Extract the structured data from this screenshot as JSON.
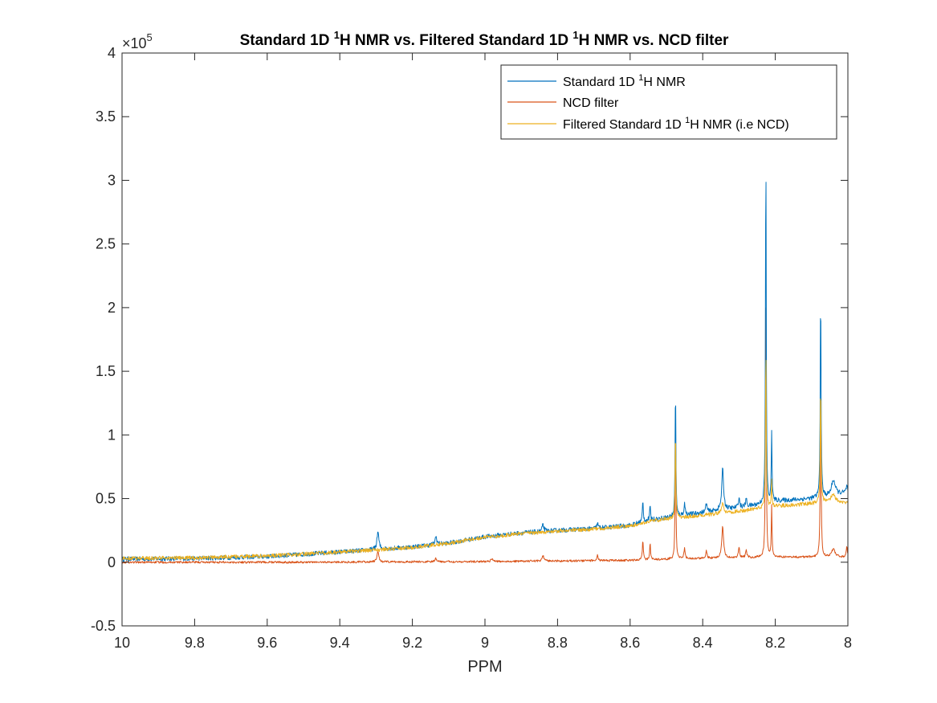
{
  "chart_data": {
    "type": "line",
    "title_parts": {
      "a": "Standard 1D ",
      "sup1": "1",
      "b": "H NMR vs. Filtered Standard 1D ",
      "sup2": "1",
      "c": "H NMR vs. NCD filter"
    },
    "xlabel": "PPM",
    "ylabel": "",
    "x_reversed": true,
    "xlim": [
      8,
      10
    ],
    "ylim": [
      -50000,
      400000
    ],
    "y_exponent_label": {
      "base": "×10",
      "exp": "5"
    },
    "xticks": [
      10,
      9.8,
      9.6,
      9.4,
      9.2,
      9,
      8.8,
      8.6,
      8.4,
      8.2,
      8
    ],
    "xtick_labels": [
      "10",
      "9.8",
      "9.6",
      "9.4",
      "9.2",
      "9",
      "8.8",
      "8.6",
      "8.4",
      "8.2",
      "8"
    ],
    "yticks": [
      -50000,
      0,
      50000,
      100000,
      150000,
      200000,
      250000,
      300000,
      350000,
      400000
    ],
    "ytick_labels": [
      "-0.5",
      "0",
      "0.5",
      "1",
      "1.5",
      "2",
      "2.5",
      "3",
      "3.5",
      "4"
    ],
    "grid": false,
    "legend_position": "top-right",
    "series": [
      {
        "name_parts": {
          "a": "Standard 1D ",
          "sup": "1",
          "b": "H NMR"
        },
        "color": "#0072BD",
        "baseline": [
          [
            10,
            2500
          ],
          [
            9.8,
            3000
          ],
          [
            9.6,
            4500
          ],
          [
            9.4,
            8000
          ],
          [
            9.2,
            12000
          ],
          [
            9.1,
            15000
          ],
          [
            9.0,
            20000
          ],
          [
            8.9,
            23000
          ],
          [
            8.8,
            25000
          ],
          [
            8.7,
            26500
          ],
          [
            8.6,
            29000
          ],
          [
            8.55,
            33000
          ],
          [
            8.5,
            35000
          ],
          [
            8.45,
            37000
          ],
          [
            8.4,
            39000
          ],
          [
            8.35,
            41000
          ],
          [
            8.3,
            43000
          ],
          [
            8.25,
            45000
          ],
          [
            8.2,
            48000
          ],
          [
            8.15,
            49000
          ],
          [
            8.1,
            50000
          ],
          [
            8.05,
            52000
          ],
          [
            8.0,
            55000
          ]
        ],
        "peaks": [
          [
            9.295,
            14000,
            0.003
          ],
          [
            9.135,
            6000,
            0.003
          ],
          [
            8.84,
            5000,
            0.003
          ],
          [
            8.69,
            4000,
            0.002
          ],
          [
            8.565,
            16000,
            0.0015
          ],
          [
            8.545,
            10000,
            0.0015
          ],
          [
            8.475,
            105000,
            0.0012
          ],
          [
            8.45,
            9000,
            0.002
          ],
          [
            8.39,
            7000,
            0.002
          ],
          [
            8.345,
            32000,
            0.003
          ],
          [
            8.3,
            8000,
            0.002
          ],
          [
            8.28,
            6000,
            0.002
          ],
          [
            8.226,
            285000,
            0.0012
          ],
          [
            8.21,
            55000,
            0.0012
          ],
          [
            8.075,
            165000,
            0.0013
          ],
          [
            8.04,
            12000,
            0.006
          ],
          [
            8.003,
            5000,
            0.002
          ]
        ],
        "noise": 1800
      },
      {
        "name_parts": {
          "a": "NCD filter",
          "sup": "",
          "b": ""
        },
        "color": "#D95319",
        "baseline": [
          [
            10,
            0
          ],
          [
            9.5,
            0
          ],
          [
            9.0,
            500
          ],
          [
            8.8,
            1000
          ],
          [
            8.6,
            1500
          ],
          [
            8.4,
            3000
          ],
          [
            8.2,
            4000
          ],
          [
            8.0,
            4000
          ]
        ],
        "peaks": [
          [
            9.295,
            8000,
            0.003
          ],
          [
            9.135,
            2500,
            0.003
          ],
          [
            8.98,
            2500,
            0.003
          ],
          [
            8.84,
            4000,
            0.003
          ],
          [
            8.69,
            5000,
            0.002
          ],
          [
            8.565,
            16000,
            0.0015
          ],
          [
            8.545,
            13000,
            0.0015
          ],
          [
            8.475,
            110000,
            0.0012
          ],
          [
            8.45,
            8000,
            0.002
          ],
          [
            8.39,
            6000,
            0.002
          ],
          [
            8.345,
            25000,
            0.003
          ],
          [
            8.3,
            8000,
            0.002
          ],
          [
            8.28,
            6000,
            0.002
          ],
          [
            8.226,
            222000,
            0.0012
          ],
          [
            8.21,
            40000,
            0.0012
          ],
          [
            8.075,
            140000,
            0.0013
          ],
          [
            8.04,
            6000,
            0.006
          ],
          [
            8.003,
            8000,
            0.002
          ]
        ],
        "noise": 800
      },
      {
        "name_parts": {
          "a": "Filtered Standard 1D ",
          "sup": "1",
          "b": "H NMR (i.e NCD)"
        },
        "color": "#EDB120",
        "baseline": [
          [
            10,
            3000
          ],
          [
            9.8,
            3500
          ],
          [
            9.6,
            5000
          ],
          [
            9.4,
            8000
          ],
          [
            9.2,
            11500
          ],
          [
            9.1,
            15000
          ],
          [
            9.0,
            19500
          ],
          [
            8.9,
            22500
          ],
          [
            8.8,
            24500
          ],
          [
            8.7,
            26000
          ],
          [
            8.6,
            28500
          ],
          [
            8.55,
            32000
          ],
          [
            8.5,
            34000
          ],
          [
            8.45,
            35500
          ],
          [
            8.4,
            37000
          ],
          [
            8.35,
            38500
          ],
          [
            8.3,
            40000
          ],
          [
            8.25,
            42000
          ],
          [
            8.2,
            44000
          ],
          [
            8.15,
            45000
          ],
          [
            8.1,
            46000
          ],
          [
            8.05,
            48000
          ],
          [
            8.0,
            47000
          ]
        ],
        "peaks": [
          [
            8.475,
            70000,
            0.0012
          ],
          [
            8.345,
            8000,
            0.003
          ],
          [
            8.226,
            130000,
            0.0012
          ],
          [
            8.21,
            20000,
            0.0012
          ],
          [
            8.075,
            95000,
            0.0013
          ],
          [
            8.04,
            6000,
            0.006
          ]
        ],
        "noise": 1500
      }
    ]
  }
}
